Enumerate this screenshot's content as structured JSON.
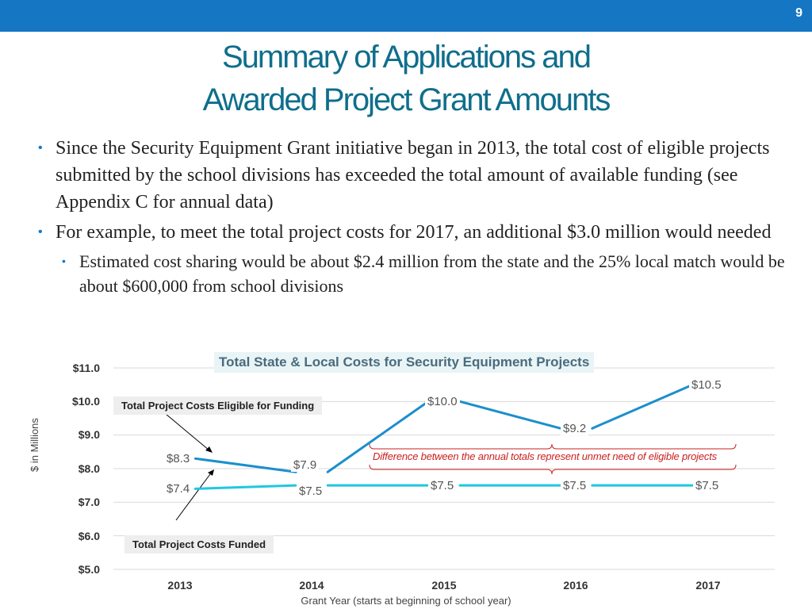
{
  "slide": {
    "page_number": "9",
    "title_line1": "Summary of Applications and",
    "title_line2": "Awarded Project Grant Amounts",
    "bullets": [
      "Since the Security Equipment Grant initiative began in 2013, the total cost of eligible projects submitted by the school divisions has exceeded the total amount of available funding (see Appendix C for annual data)",
      "For example, to meet the total project costs for 2017, an additional $3.0 million would needed"
    ],
    "sub_bullets": [
      "Estimated cost sharing would be about $2.4 million from the state and the 25% local match would be about $600,000 from school divisions"
    ],
    "colors": {
      "header_bar": "#1576c4",
      "title": "#0f6e8c",
      "series_eligible": "#1b8fcc",
      "series_funded": "#1ec8e0",
      "annotation": "#cc1f1f"
    }
  },
  "chart_data": {
    "type": "line",
    "title": "Total State & Local Costs for Security Equipment Projects",
    "xlabel": "Grant Year (starts at beginning of school year)",
    "ylabel": "$ in Millions",
    "categories": [
      "2013",
      "2014",
      "2015",
      "2016",
      "2017"
    ],
    "yticks": [
      "$5.0",
      "$6.0",
      "$7.0",
      "$8.0",
      "$9.0",
      "$10.0",
      "$11.0"
    ],
    "ylim": [
      5,
      11
    ],
    "grid": true,
    "series": [
      {
        "name": "Total Project Costs Eligible for Funding",
        "values": [
          8.3,
          7.9,
          10.0,
          9.2,
          10.5
        ],
        "labels": [
          "$8.3",
          "$7.9",
          "$10.0",
          "$9.2",
          "$10.5"
        ]
      },
      {
        "name": "Total Project Costs Funded",
        "values": [
          7.4,
          7.5,
          7.5,
          7.5,
          7.5
        ],
        "labels": [
          "$7.4",
          "$7.5",
          "$7.5",
          "$7.5",
          "$7.5"
        ]
      }
    ],
    "annotation": "Difference between the annual totals represent unmet need of eligible projects"
  }
}
